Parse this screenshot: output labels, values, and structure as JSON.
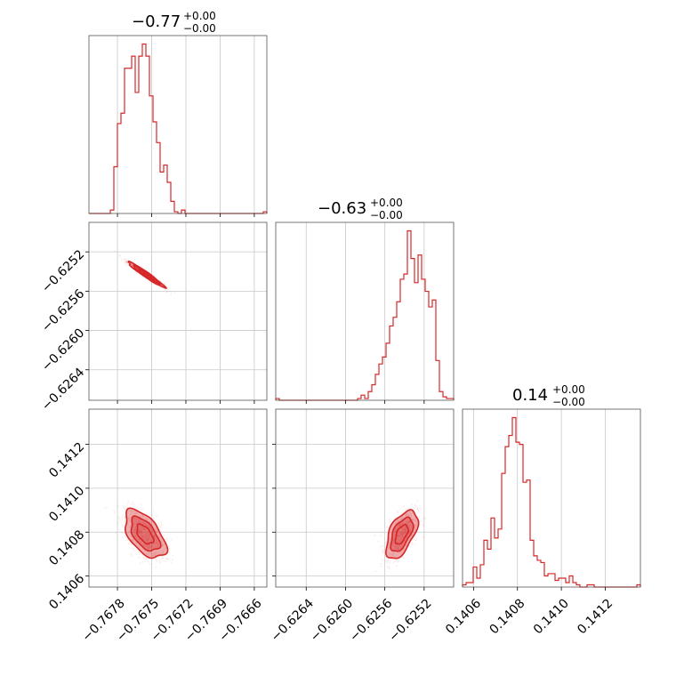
{
  "titles": [
    {
      "main": "−0.77",
      "sup": "+0.00",
      "sub": "−0.00"
    },
    {
      "main": "−0.63",
      "sup": "+0.00",
      "sub": "−0.00"
    },
    {
      "main": "0.14",
      "sup": "+0.00",
      "sub": "−0.00"
    }
  ],
  "chart_data": {
    "type": "corner",
    "parameters": 3,
    "color": "#d62728",
    "grid": true,
    "ranges": [
      [
        -0.76805,
        -0.76649
      ],
      [
        -0.62671,
        -0.6249
      ],
      [
        0.14055,
        0.14136
      ]
    ],
    "ticks": [
      {
        "values": [
          -0.7678,
          -0.7675,
          -0.7672,
          -0.7669,
          -0.7666
        ],
        "labels": [
          "−0.7678",
          "−0.7675",
          "−0.7672",
          "−0.7669",
          "−0.7666"
        ]
      },
      {
        "values": [
          -0.6264,
          -0.626,
          -0.6256,
          -0.6252
        ],
        "labels": [
          "−0.6264",
          "−0.6260",
          "−0.6256",
          "−0.6252"
        ]
      },
      {
        "values": [
          0.1406,
          0.1408,
          0.141,
          0.1412
        ],
        "labels": [
          "0.1406",
          "0.1408",
          "0.1410",
          "0.1412"
        ]
      }
    ],
    "histograms": [
      {
        "parameter": 0,
        "bin_edges_range": [
          -0.76805,
          -0.76649
        ],
        "bins": 50,
        "counts": [
          0,
          0,
          0,
          0,
          0,
          0,
          2,
          27,
          52,
          58,
          84,
          84,
          91,
          70,
          91,
          98,
          91,
          68,
          53,
          41,
          24,
          28,
          18,
          7,
          1,
          0,
          2,
          0,
          0,
          0,
          0,
          0,
          0,
          0,
          0,
          0,
          0,
          0,
          0,
          0,
          0,
          0,
          0,
          0,
          0,
          0,
          0,
          0,
          0,
          1
        ]
      },
      {
        "parameter": 1,
        "bin_edges_range": [
          -0.62671,
          -0.6249
        ],
        "bins": 50,
        "counts": [
          1,
          0,
          0,
          0,
          0,
          0,
          0,
          0,
          0,
          0,
          0,
          0,
          0,
          0,
          0,
          0,
          0,
          0,
          0,
          0,
          0,
          0,
          0,
          1,
          3,
          1,
          5,
          9,
          15,
          21,
          25,
          33,
          43,
          48,
          57,
          70,
          73,
          98,
          82,
          68,
          84,
          70,
          63,
          54,
          58,
          23,
          5,
          2,
          1,
          1
        ]
      },
      {
        "parameter": 2,
        "bin_edges_range": [
          0.14055,
          0.14136
        ],
        "bins": 50,
        "counts": [
          1,
          2,
          2,
          9,
          4,
          10,
          21,
          17,
          31,
          22,
          26,
          51,
          63,
          68,
          76,
          65,
          64,
          47,
          48,
          21,
          14,
          12,
          11,
          5,
          6,
          6,
          3,
          4,
          4,
          2,
          5,
          2,
          1,
          0,
          0,
          1,
          1,
          0,
          0,
          0,
          0,
          0,
          0,
          0,
          0,
          0,
          0,
          0,
          0,
          1
        ]
      }
    ],
    "pairs": [
      {
        "x_param": 0,
        "y_param": 1,
        "correlation": "strong negative",
        "mean": [
          -0.76755,
          -0.62543
        ],
        "sd": [
          8e-05,
          6.5e-05
        ],
        "rho": -0.97
      },
      {
        "x_param": 0,
        "y_param": 2,
        "correlation": "moderate negative",
        "mean": [
          -0.76756,
          0.14079
        ],
        "sd": [
          9e-05,
          5.5e-05
        ],
        "rho": -0.55
      },
      {
        "x_param": 1,
        "y_param": 2,
        "correlation": "moderate positive",
        "mean": [
          -0.62543,
          0.14079
        ],
        "sd": [
          8e-05,
          5.5e-05
        ],
        "rho": 0.55
      }
    ]
  }
}
